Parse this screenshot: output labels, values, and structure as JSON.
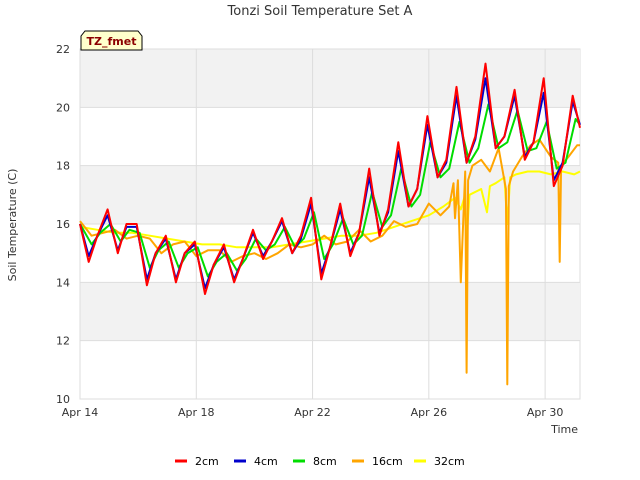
{
  "chart_data": {
    "type": "line",
    "title": "Tonzi Soil Temperature Set A",
    "xlabel": "Time",
    "ylabel": "Soil Temperature (C)",
    "badge": "TZ_fmet",
    "xlim": [
      14,
      31.2
    ],
    "ylim": [
      10,
      22
    ],
    "yticks": [
      10,
      12,
      14,
      16,
      18,
      20,
      22
    ],
    "xticks": [
      {
        "value": 14,
        "label": "Apr 14"
      },
      {
        "value": 18,
        "label": "Apr 18"
      },
      {
        "value": 22,
        "label": "Apr 22"
      },
      {
        "value": 26,
        "label": "Apr 26"
      },
      {
        "value": 30,
        "label": "Apr 30"
      }
    ],
    "grid": true,
    "legend_position": "bottom",
    "series": [
      {
        "name": "2cm",
        "color": "#ff0000",
        "x": [
          14.0,
          14.3,
          14.6,
          14.95,
          15.3,
          15.6,
          15.95,
          16.3,
          16.6,
          16.95,
          17.3,
          17.6,
          17.95,
          18.3,
          18.6,
          18.95,
          19.3,
          19.6,
          19.95,
          20.3,
          20.6,
          20.95,
          21.3,
          21.6,
          21.95,
          22.3,
          22.6,
          22.95,
          23.3,
          23.6,
          23.95,
          24.3,
          24.6,
          24.95,
          25.3,
          25.6,
          25.95,
          26.3,
          26.6,
          26.95,
          27.3,
          27.6,
          27.95,
          28.3,
          28.6,
          28.95,
          29.3,
          29.6,
          29.95,
          30.3,
          30.6,
          30.95,
          31.2
        ],
        "y": [
          16.0,
          14.7,
          15.6,
          16.5,
          15.0,
          16.0,
          16.0,
          13.9,
          15.0,
          15.6,
          14.0,
          15.0,
          15.4,
          13.6,
          14.6,
          15.3,
          14.0,
          14.8,
          15.8,
          14.8,
          15.4,
          16.2,
          15.0,
          15.6,
          16.9,
          14.1,
          15.2,
          16.7,
          14.9,
          15.7,
          17.9,
          15.6,
          16.5,
          18.8,
          16.6,
          17.2,
          19.7,
          17.6,
          18.2,
          20.7,
          18.1,
          19.0,
          21.5,
          18.6,
          19.0,
          20.6,
          18.2,
          18.8,
          21.0,
          17.3,
          18.0,
          20.4,
          19.3
        ]
      },
      {
        "name": "4cm",
        "color": "#0000cc",
        "x": [
          14.0,
          14.3,
          14.6,
          14.95,
          15.3,
          15.6,
          15.95,
          16.3,
          16.6,
          16.95,
          17.3,
          17.6,
          17.95,
          18.3,
          18.6,
          18.95,
          19.3,
          19.6,
          19.95,
          20.3,
          20.6,
          20.95,
          21.3,
          21.6,
          21.95,
          22.3,
          22.6,
          22.95,
          23.3,
          23.6,
          23.95,
          24.3,
          24.6,
          24.95,
          25.3,
          25.6,
          25.95,
          26.3,
          26.6,
          26.95,
          27.3,
          27.6,
          27.95,
          28.3,
          28.6,
          28.95,
          29.3,
          29.6,
          29.95,
          30.3,
          30.6,
          30.95,
          31.2
        ],
        "y": [
          16.0,
          14.9,
          15.6,
          16.3,
          15.1,
          15.9,
          15.9,
          14.1,
          15.0,
          15.5,
          14.1,
          15.0,
          15.3,
          13.8,
          14.6,
          15.2,
          14.1,
          14.8,
          15.7,
          14.9,
          15.4,
          16.1,
          15.0,
          15.5,
          16.7,
          14.3,
          15.2,
          16.5,
          15.0,
          15.7,
          17.6,
          15.7,
          16.4,
          18.5,
          16.6,
          17.2,
          19.4,
          17.6,
          18.1,
          20.4,
          18.1,
          18.9,
          21.0,
          18.6,
          19.0,
          20.4,
          18.3,
          18.8,
          20.5,
          17.5,
          18.1,
          20.2,
          19.4
        ]
      },
      {
        "name": "8cm",
        "color": "#00dd00",
        "x": [
          14.0,
          14.4,
          14.7,
          15.05,
          15.4,
          15.7,
          16.05,
          16.4,
          16.7,
          17.05,
          17.4,
          17.7,
          18.05,
          18.4,
          18.7,
          19.05,
          19.4,
          19.7,
          20.05,
          20.4,
          20.7,
          21.05,
          21.4,
          21.7,
          22.05,
          22.4,
          22.7,
          23.05,
          23.4,
          23.7,
          24.05,
          24.4,
          24.7,
          25.05,
          25.4,
          25.7,
          26.05,
          26.4,
          26.7,
          27.05,
          27.4,
          27.7,
          28.05,
          28.4,
          28.7,
          29.05,
          29.4,
          29.7,
          30.05,
          30.4,
          30.7,
          31.05,
          31.2
        ],
        "y": [
          16.0,
          15.3,
          15.7,
          16.0,
          15.4,
          15.8,
          15.7,
          14.5,
          15.1,
          15.4,
          14.5,
          15.0,
          15.2,
          14.2,
          14.7,
          15.0,
          14.4,
          14.8,
          15.5,
          15.1,
          15.3,
          15.9,
          15.2,
          15.5,
          16.4,
          14.8,
          15.3,
          16.2,
          15.3,
          15.6,
          17.1,
          15.9,
          16.3,
          17.9,
          16.6,
          17.0,
          18.8,
          17.6,
          17.9,
          19.5,
          18.1,
          18.6,
          20.1,
          18.6,
          18.8,
          19.9,
          18.5,
          18.6,
          19.5,
          17.9,
          18.1,
          19.6,
          19.4
        ]
      },
      {
        "name": "16cm",
        "color": "#ffa500",
        "x": [
          14.0,
          14.4,
          14.8,
          15.2,
          15.6,
          16.0,
          16.4,
          16.8,
          17.2,
          17.6,
          18.0,
          18.4,
          18.8,
          19.2,
          19.6,
          20.0,
          20.4,
          20.8,
          21.2,
          21.6,
          22.0,
          22.4,
          22.8,
          23.2,
          23.6,
          24.0,
          24.4,
          24.8,
          25.2,
          25.6,
          26.0,
          26.4,
          26.7,
          26.85,
          26.9,
          27.0,
          27.1,
          27.25,
          27.3,
          27.35,
          27.5,
          27.8,
          28.1,
          28.4,
          28.65,
          28.7,
          28.75,
          28.9,
          29.2,
          29.5,
          29.8,
          30.2,
          30.45,
          30.5,
          30.55,
          30.8,
          31.1,
          31.2
        ],
        "y": [
          16.1,
          15.6,
          15.7,
          15.8,
          15.5,
          15.6,
          15.5,
          15.0,
          15.3,
          15.4,
          14.9,
          15.1,
          15.1,
          14.7,
          14.9,
          15.0,
          14.8,
          15.0,
          15.3,
          15.2,
          15.3,
          15.6,
          15.3,
          15.4,
          15.8,
          15.4,
          15.6,
          16.1,
          15.9,
          16.0,
          16.7,
          16.3,
          16.6,
          17.4,
          16.2,
          17.5,
          14.0,
          17.8,
          10.9,
          17.5,
          18.0,
          18.2,
          17.8,
          18.6,
          17.2,
          10.5,
          17.3,
          17.8,
          18.3,
          18.7,
          18.9,
          18.3,
          18.1,
          14.7,
          18.0,
          18.3,
          18.7,
          18.7
        ]
      },
      {
        "name": "32cm",
        "color": "#ffff00",
        "x": [
          14.0,
          14.6,
          15.2,
          15.8,
          16.4,
          17.0,
          17.6,
          18.2,
          18.8,
          19.4,
          20.0,
          20.6,
          21.2,
          21.8,
          22.4,
          23.0,
          23.6,
          24.2,
          24.8,
          25.4,
          26.0,
          26.5,
          26.9,
          27.1,
          27.25,
          27.3,
          27.4,
          27.8,
          28.0,
          28.1,
          28.3,
          28.6,
          28.7,
          28.8,
          29.0,
          29.4,
          29.8,
          30.2,
          30.6,
          31.0,
          31.2
        ],
        "y": [
          15.9,
          15.8,
          15.7,
          15.7,
          15.6,
          15.5,
          15.4,
          15.3,
          15.3,
          15.2,
          15.2,
          15.2,
          15.3,
          15.4,
          15.5,
          15.6,
          15.6,
          15.7,
          15.9,
          16.1,
          16.3,
          16.6,
          16.9,
          16.5,
          17.0,
          15.5,
          17.0,
          17.2,
          16.4,
          17.3,
          17.4,
          17.6,
          16.0,
          17.6,
          17.7,
          17.8,
          17.8,
          17.7,
          17.8,
          17.7,
          17.8
        ]
      }
    ]
  }
}
